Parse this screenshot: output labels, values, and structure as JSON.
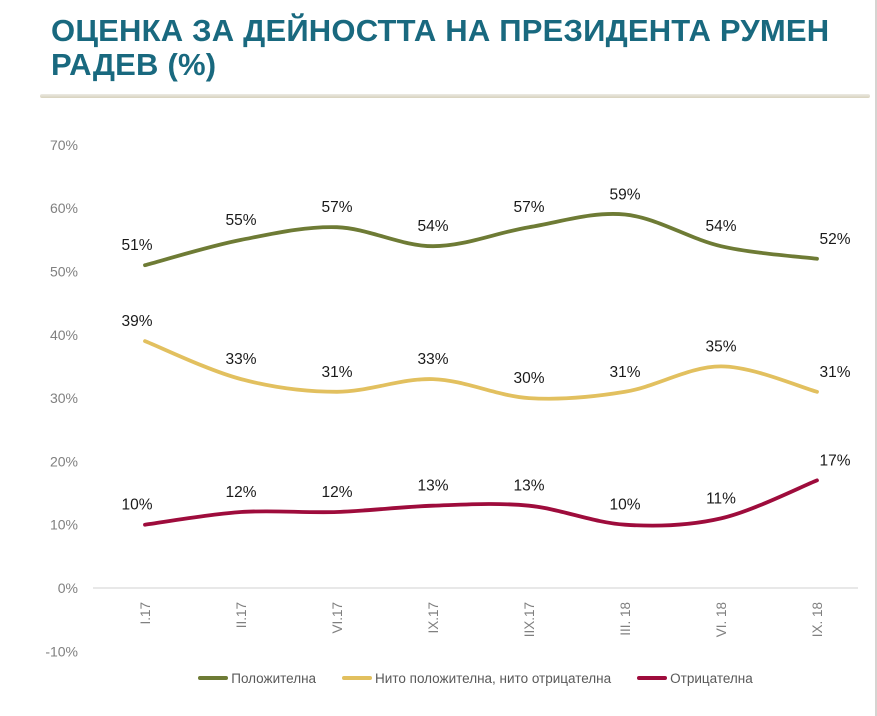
{
  "page": {
    "title": "ОЦЕНКА ЗА ДЕЙНОСТТА НА ПРЕЗИДЕНТА РУМЕН РАДЕВ (%)"
  },
  "colors": {
    "title": "#19697f",
    "separator": "#d8d2bd",
    "axis_line": "#d9d9d9",
    "axis_label": "#808080",
    "data_label": "#1a1a1a",
    "legend_label": "#595959",
    "positive_line": "#6e7b35",
    "neutral_line": "#e2c05f",
    "negative_line": "#9e0c3c"
  },
  "chart_data": {
    "type": "line",
    "title": "ОЦЕНКА ЗА ДЕЙНОСТТА НА ПРЕЗИДЕНТА РУМЕН РАДЕВ (%)",
    "categories": [
      "I.17",
      "II.17",
      "VI.17",
      "IX.17",
      "IIX.17",
      "III. 18",
      "VI. 18",
      "IX. 18"
    ],
    "series": [
      {
        "name": "Положителна",
        "color": "#6e7b35",
        "values": [
          51,
          55,
          57,
          54,
          57,
          59,
          54,
          52
        ]
      },
      {
        "name": "Нито положителна, нито отрицателна",
        "color": "#e2c05f",
        "values": [
          39,
          33,
          31,
          33,
          30,
          31,
          35,
          31
        ]
      },
      {
        "name": "Отрицателна",
        "color": "#9e0c3c",
        "values": [
          10,
          12,
          12,
          13,
          13,
          10,
          11,
          17
        ]
      }
    ],
    "y_ticks": [
      {
        "value": 70,
        "label": "70%"
      },
      {
        "value": 60,
        "label": "60%"
      },
      {
        "value": 50,
        "label": "50%"
      },
      {
        "value": 40,
        "label": "40%"
      },
      {
        "value": 30,
        "label": "30%"
      },
      {
        "value": 20,
        "label": "20%"
      },
      {
        "value": 10,
        "label": "10%"
      },
      {
        "value": 0,
        "label": "0%"
      },
      {
        "value": -10,
        "label": "-10%"
      }
    ],
    "ylim": [
      -10,
      70
    ],
    "unit": "%",
    "grid": false,
    "smooth": true,
    "data_labels": true,
    "legend_position": "bottom"
  }
}
